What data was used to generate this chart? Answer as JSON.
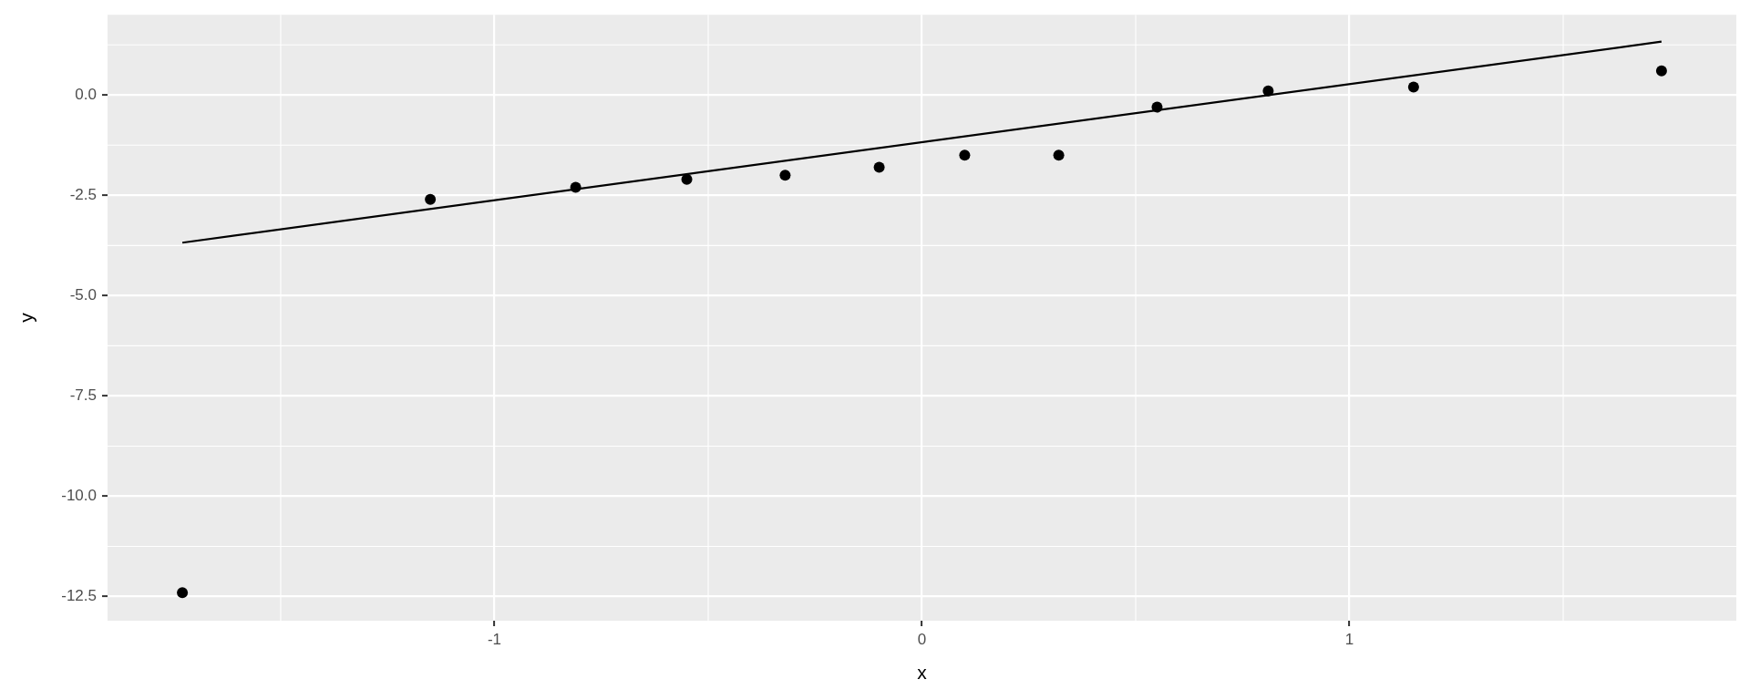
{
  "chart_data": {
    "type": "scatter",
    "xlabel": "x",
    "ylabel": "y",
    "xlim": [
      -1.905,
      1.905
    ],
    "ylim": [
      -13.1,
      2.0
    ],
    "xticks": [
      -1,
      0,
      1
    ],
    "yticks": [
      {
        "value": 0,
        "label": "0.0"
      },
      -2.5,
      {
        "value": -5,
        "label": "-5.0"
      },
      -7.5,
      {
        "value": -10,
        "label": "-10.0"
      },
      -12.5
    ],
    "grid": true,
    "marker": "circle",
    "series": [
      {
        "color": "#000000",
        "x": [
          -1.73,
          -1.15,
          -0.81,
          -0.55,
          -0.32,
          -0.1,
          0.1,
          0.32,
          0.55,
          0.81,
          1.15,
          1.73
        ],
        "values": [
          -12.4,
          -2.6,
          -2.3,
          -2.1,
          -2.0,
          -1.8,
          -1.5,
          -1.5,
          -0.3,
          0.1,
          0.2,
          0.6
        ]
      },
      {
        "type": "line",
        "marker": "none",
        "color": "#000000",
        "x": [
          -1.73,
          1.73
        ],
        "values": [
          -3.68,
          1.33
        ]
      }
    ]
  }
}
